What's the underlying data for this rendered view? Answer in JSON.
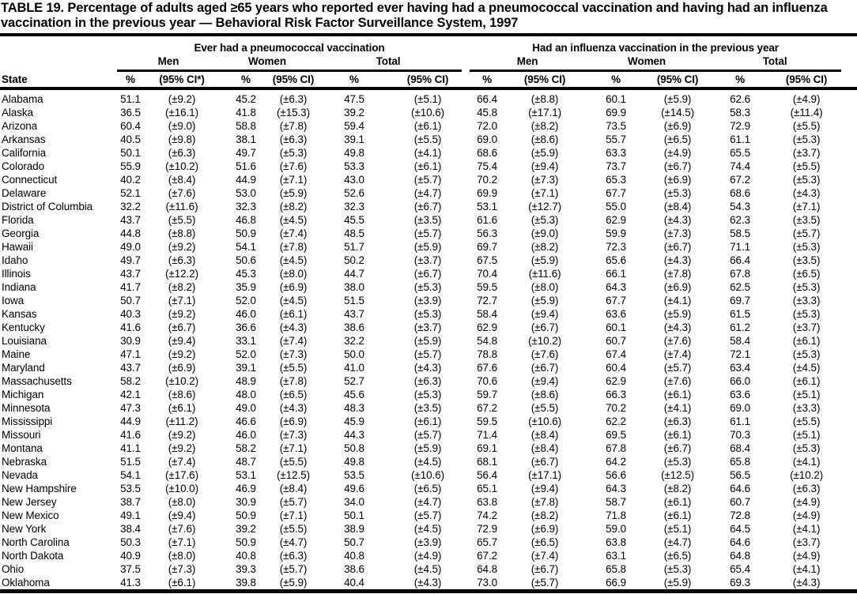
{
  "title": "TABLE 19. Percentage of adults aged ≥65 years who reported ever having had a pneumococcal vaccination and having had an influenza vaccination in the previous year — Behavioral Risk Factor Surveillance System, 1997",
  "table": {
    "group_headers": [
      "Ever had a pneumococcal vaccination",
      "Had an influenza vaccination in the previous year"
    ],
    "subgroup_headers": [
      "Men",
      "Women",
      "Total"
    ],
    "state_col_header": "State",
    "pct_header": "%",
    "ci_header": "(95% CI)",
    "ci_header_first": "(95% CI*)",
    "rows": [
      {
        "state": "Alabama",
        "values": [
          "51.1",
          "(±9.2)",
          "45.2",
          "(±6.3)",
          "47.5",
          "(±5.1)",
          "66.4",
          "(±8.8)",
          "60.1",
          "(±5.9)",
          "62.6",
          "(±4.9)"
        ]
      },
      {
        "state": "Alaska",
        "values": [
          "36.5",
          "(±16.1)",
          "41.8",
          "(±15.3)",
          "39.2",
          "(±10.6)",
          "45.8",
          "(±17.1)",
          "69.9",
          "(±14.5)",
          "58.3",
          "(±11.4)"
        ]
      },
      {
        "state": "Arizona",
        "values": [
          "60.4",
          "(±9.0)",
          "58.8",
          "(±7.8)",
          "59.4",
          "(±6.1)",
          "72.0",
          "(±8.2)",
          "73.5",
          "(±6.9)",
          "72.9",
          "(±5.5)"
        ]
      },
      {
        "state": "Arkansas",
        "values": [
          "40.5",
          "(±9.8)",
          "38.1",
          "(±6.3)",
          "39.1",
          "(±5.5)",
          "69.0",
          "(±8.6)",
          "55.7",
          "(±6.5)",
          "61.1",
          "(±5.3)"
        ]
      },
      {
        "state": "California",
        "values": [
          "50.1",
          "(±6.3)",
          "49.7",
          "(±5.3)",
          "49.8",
          "(±4.1)",
          "68.6",
          "(±5.9)",
          "63.3",
          "(±4.9)",
          "65.5",
          "(±3.7)"
        ]
      },
      {
        "state": "Colorado",
        "values": [
          "55.9",
          "(±10.2)",
          "51.6",
          "(±7.6)",
          "53.3",
          "(±6.1)",
          "75.4",
          "(±9.4)",
          "73.7",
          "(±6.7)",
          "74.4",
          "(±5.5)"
        ]
      },
      {
        "state": "Connecticut",
        "values": [
          "40.2",
          "(±8.4)",
          "44.9",
          "(±7.1)",
          "43.0",
          "(±5.7)",
          "70.2",
          "(±7.3)",
          "65.3",
          "(±6.9)",
          "67.2",
          "(±5.3)"
        ]
      },
      {
        "state": "Delaware",
        "values": [
          "52.1",
          "(±7.6)",
          "53.0",
          "(±5.9)",
          "52.6",
          "(±4.7)",
          "69.9",
          "(±7.1)",
          "67.7",
          "(±5.3)",
          "68.6",
          "(±4.3)"
        ]
      },
      {
        "state": "District of Columbia",
        "values": [
          "32.2",
          "(±11.6)",
          "32.3",
          "(±8.2)",
          "32.3",
          "(±6.7)",
          "53.1",
          "(±12.7)",
          "55.0",
          "(±8.4)",
          "54.3",
          "(±7.1)"
        ]
      },
      {
        "state": "Florida",
        "values": [
          "43.7",
          "(±5.5)",
          "46.8",
          "(±4.5)",
          "45.5",
          "(±3.5)",
          "61.6",
          "(±5.3)",
          "62.9",
          "(±4.3)",
          "62.3",
          "(±3.5)"
        ]
      },
      {
        "state": "Georgia",
        "values": [
          "44.8",
          "(±8.8)",
          "50.9",
          "(±7.4)",
          "48.5",
          "(±5.7)",
          "56.3",
          "(±9.0)",
          "59.9",
          "(±7.3)",
          "58.5",
          "(±5.7)"
        ]
      },
      {
        "state": "Hawaii",
        "values": [
          "49.0",
          "(±9.2)",
          "54.1",
          "(±7.8)",
          "51.7",
          "(±5.9)",
          "69.7",
          "(±8.2)",
          "72.3",
          "(±6.7)",
          "71.1",
          "(±5.3)"
        ]
      },
      {
        "state": "Idaho",
        "values": [
          "49.7",
          "(±6.3)",
          "50.6",
          "(±4.5)",
          "50.2",
          "(±3.7)",
          "67.5",
          "(±5.9)",
          "65.6",
          "(±4.3)",
          "66.4",
          "(±3.5)"
        ]
      },
      {
        "state": "Illinois",
        "values": [
          "43.7",
          "(±12.2)",
          "45.3",
          "(±8.0)",
          "44.7",
          "(±6.7)",
          "70.4",
          "(±11.6)",
          "66.1",
          "(±7.8)",
          "67.8",
          "(±6.5)"
        ]
      },
      {
        "state": "Indiana",
        "values": [
          "41.7",
          "(±8.2)",
          "35.9",
          "(±6.9)",
          "38.0",
          "(±5.3)",
          "59.5",
          "(±8.0)",
          "64.3",
          "(±6.9)",
          "62.5",
          "(±5.3)"
        ]
      },
      {
        "state": "Iowa",
        "values": [
          "50.7",
          "(±7.1)",
          "52.0",
          "(±4.5)",
          "51.5",
          "(±3.9)",
          "72.7",
          "(±5.9)",
          "67.7",
          "(±4.1)",
          "69.7",
          "(±3.3)"
        ]
      },
      {
        "state": "Kansas",
        "values": [
          "40.3",
          "(±9.2)",
          "46.0",
          "(±6.1)",
          "43.7",
          "(±5.3)",
          "58.4",
          "(±9.4)",
          "63.6",
          "(±5.9)",
          "61.5",
          "(±5.3)"
        ]
      },
      {
        "state": "Kentucky",
        "values": [
          "41.6",
          "(±6.7)",
          "36.6",
          "(±4.3)",
          "38.6",
          "(±3.7)",
          "62.9",
          "(±6.7)",
          "60.1",
          "(±4.3)",
          "61.2",
          "(±3.7)"
        ]
      },
      {
        "state": "Louisiana",
        "values": [
          "30.9",
          "(±9.4)",
          "33.1",
          "(±7.4)",
          "32.2",
          "(±5.9)",
          "54.8",
          "(±10.2)",
          "60.7",
          "(±7.6)",
          "58.4",
          "(±6.1)"
        ]
      },
      {
        "state": "Maine",
        "values": [
          "47.1",
          "(±9.2)",
          "52.0",
          "(±7.3)",
          "50.0",
          "(±5.7)",
          "78.8",
          "(±7.6)",
          "67.4",
          "(±7.4)",
          "72.1",
          "(±5.3)"
        ]
      },
      {
        "state": "Maryland",
        "values": [
          "43.7",
          "(±6.9)",
          "39.1",
          "(±5.5)",
          "41.0",
          "(±4.3)",
          "67.6",
          "(±6.7)",
          "60.4",
          "(±5.7)",
          "63.4",
          "(±4.5)"
        ]
      },
      {
        "state": "Massachusetts",
        "values": [
          "58.2",
          "(±10.2)",
          "48.9",
          "(±7.8)",
          "52.7",
          "(±6.3)",
          "70.6",
          "(±9.4)",
          "62.9",
          "(±7.6)",
          "66.0",
          "(±6.1)"
        ]
      },
      {
        "state": "Michigan",
        "values": [
          "42.1",
          "(±8.6)",
          "48.0",
          "(±6.5)",
          "45.6",
          "(±5.3)",
          "59.7",
          "(±8.6)",
          "66.3",
          "(±6.1)",
          "63.6",
          "(±5.1)"
        ]
      },
      {
        "state": "Minnesota",
        "values": [
          "47.3",
          "(±6.1)",
          "49.0",
          "(±4.3)",
          "48.3",
          "(±3.5)",
          "67.2",
          "(±5.5)",
          "70.2",
          "(±4.1)",
          "69.0",
          "(±3.3)"
        ]
      },
      {
        "state": "Mississippi",
        "values": [
          "44.9",
          "(±11.2)",
          "46.6",
          "(±6.9)",
          "45.9",
          "(±6.1)",
          "59.5",
          "(±10.6)",
          "62.2",
          "(±6.3)",
          "61.1",
          "(±5.5)"
        ]
      },
      {
        "state": "Missouri",
        "values": [
          "41.6",
          "(±9.2)",
          "46.0",
          "(±7.3)",
          "44.3",
          "(±5.7)",
          "71.4",
          "(±8.4)",
          "69.5",
          "(±6.1)",
          "70.3",
          "(±5.1)"
        ]
      },
      {
        "state": "Montana",
        "values": [
          "41.1",
          "(±9.2)",
          "58.2",
          "(±7.1)",
          "50.8",
          "(±5.9)",
          "69.1",
          "(±8.4)",
          "67.8",
          "(±6.7)",
          "68.4",
          "(±5.3)"
        ]
      },
      {
        "state": "Nebraska",
        "values": [
          "51.5",
          "(±7.4)",
          "48.7",
          "(±5.5)",
          "49.8",
          "(±4.5)",
          "68.1",
          "(±6.7)",
          "64.2",
          "(±5.3)",
          "65.8",
          "(±4.1)"
        ]
      },
      {
        "state": "Nevada",
        "values": [
          "54.1",
          "(±17.6)",
          "53.1",
          "(±12.5)",
          "53.5",
          "(±10.6)",
          "56.4",
          "(±17.1)",
          "56.6",
          "(±12.5)",
          "56.5",
          "(±10.2)"
        ]
      },
      {
        "state": "New Hampshire",
        "values": [
          "53.5",
          "(±10.0)",
          "46.9",
          "(±8.4)",
          "49.6",
          "(±6.5)",
          "65.1",
          "(±9.4)",
          "64.3",
          "(±8.2)",
          "64.6",
          "(±6.3)"
        ]
      },
      {
        "state": "New Jersey",
        "values": [
          "38.7",
          "(±8.0)",
          "30.9",
          "(±5.7)",
          "34.0",
          "(±4.7)",
          "63.8",
          "(±7.8)",
          "58.7",
          "(±6.1)",
          "60.7",
          "(±4.9)"
        ]
      },
      {
        "state": "New Mexico",
        "values": [
          "49.1",
          "(±9.4)",
          "50.9",
          "(±7.1)",
          "50.1",
          "(±5.7)",
          "74.2",
          "(±8.2)",
          "71.8",
          "(±6.1)",
          "72.8",
          "(±4.9)"
        ]
      },
      {
        "state": "New York",
        "values": [
          "38.4",
          "(±7.6)",
          "39.2",
          "(±5.5)",
          "38.9",
          "(±4.5)",
          "72.9",
          "(±6.9)",
          "59.0",
          "(±5.1)",
          "64.5",
          "(±4.1)"
        ]
      },
      {
        "state": "North Carolina",
        "values": [
          "50.3",
          "(±7.1)",
          "50.9",
          "(±4.7)",
          "50.7",
          "(±3.9)",
          "65.7",
          "(±6.5)",
          "63.8",
          "(±4.7)",
          "64.6",
          "(±3.7)"
        ]
      },
      {
        "state": "North Dakota",
        "values": [
          "40.9",
          "(±8.0)",
          "40.8",
          "(±6.3)",
          "40.8",
          "(±4.9)",
          "67.2",
          "(±7.4)",
          "63.1",
          "(±6.5)",
          "64.8",
          "(±4.9)"
        ]
      },
      {
        "state": "Ohio",
        "values": [
          "37.5",
          "(±7.3)",
          "39.3",
          "(±5.7)",
          "38.6",
          "(±4.5)",
          "64.8",
          "(±6.7)",
          "65.8",
          "(±5.3)",
          "65.4",
          "(±4.1)"
        ]
      },
      {
        "state": "Oklahoma",
        "values": [
          "41.3",
          "(±6.1)",
          "39.8",
          "(±5.9)",
          "40.4",
          "(±4.3)",
          "73.0",
          "(±5.7)",
          "66.9",
          "(±5.9)",
          "69.3",
          "(±4.3)"
        ]
      }
    ]
  }
}
